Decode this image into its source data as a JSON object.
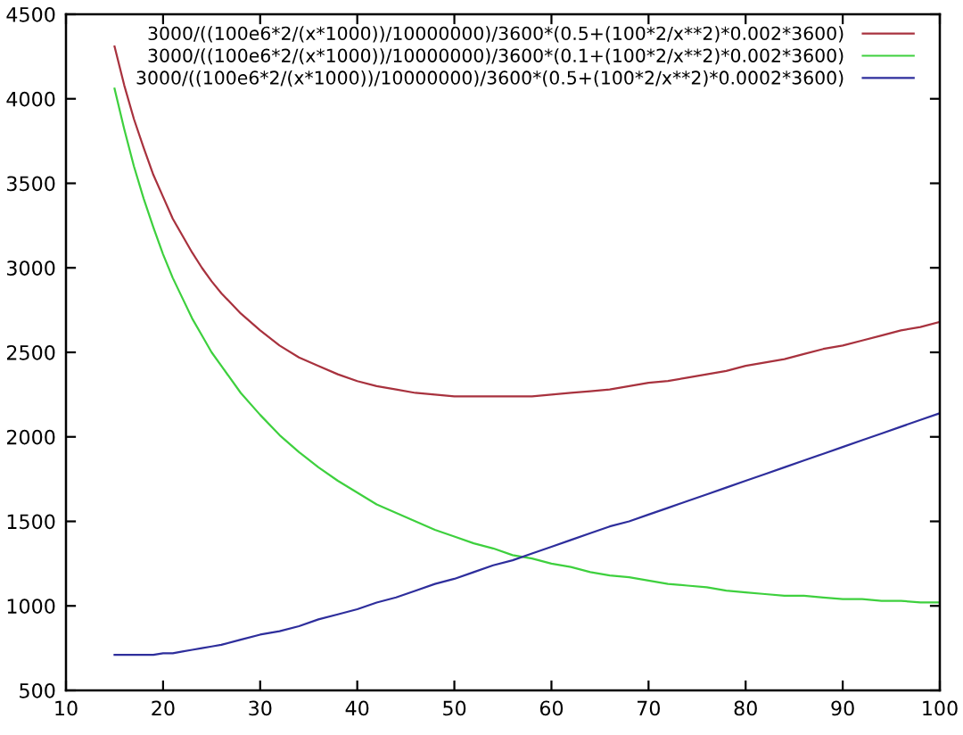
{
  "chart_data": {
    "type": "line",
    "x": [
      15,
      16,
      17,
      18,
      19,
      20,
      21,
      22,
      23,
      24,
      25,
      26,
      28,
      30,
      32,
      34,
      36,
      38,
      40,
      42,
      44,
      46,
      48,
      50,
      52,
      54,
      56,
      58,
      60,
      62,
      64,
      66,
      68,
      70,
      72,
      74,
      76,
      78,
      80,
      82,
      84,
      86,
      88,
      90,
      92,
      94,
      96,
      98,
      100
    ],
    "series": [
      {
        "name": "3000/((100e6*2/(x*1000))/10000000)/3600*(0.5+(100*2/x**2)*0.002*3600)",
        "color": "#a8323e",
        "values": [
          4310,
          4080,
          3880,
          3710,
          3550,
          3420,
          3290,
          3190,
          3090,
          3000,
          2920,
          2850,
          2730,
          2630,
          2540,
          2470,
          2420,
          2370,
          2330,
          2300,
          2280,
          2260,
          2250,
          2240,
          2240,
          2240,
          2240,
          2240,
          2250,
          2260,
          2270,
          2280,
          2300,
          2320,
          2330,
          2350,
          2370,
          2390,
          2420,
          2440,
          2460,
          2490,
          2520,
          2540,
          2570,
          2600,
          2630,
          2650,
          2680
        ]
      },
      {
        "name": "3000/((100e6*2/(x*1000))/10000000)/3600*(0.1+(100*2/x**2)*0.002*3600)",
        "color": "#3ed03e",
        "values": [
          4060,
          3820,
          3600,
          3410,
          3240,
          3080,
          2940,
          2820,
          2700,
          2600,
          2500,
          2420,
          2260,
          2130,
          2010,
          1910,
          1820,
          1740,
          1670,
          1600,
          1550,
          1500,
          1450,
          1410,
          1370,
          1340,
          1300,
          1280,
          1250,
          1230,
          1200,
          1180,
          1170,
          1150,
          1130,
          1120,
          1110,
          1090,
          1080,
          1070,
          1060,
          1060,
          1050,
          1040,
          1040,
          1030,
          1030,
          1020,
          1020
        ]
      },
      {
        "name": "3000/((100e6*2/(x*1000))/10000000)/3600*(0.5+(100*2/x**2)*0.0002*3600)",
        "color": "#2e2e9c",
        "values": [
          710,
          710,
          710,
          710,
          710,
          720,
          720,
          730,
          740,
          750,
          760,
          770,
          800,
          830,
          850,
          880,
          920,
          950,
          980,
          1020,
          1050,
          1090,
          1130,
          1160,
          1200,
          1240,
          1270,
          1310,
          1350,
          1390,
          1430,
          1470,
          1500,
          1540,
          1580,
          1620,
          1660,
          1700,
          1740,
          1780,
          1820,
          1860,
          1900,
          1940,
          1980,
          2020,
          2060,
          2100,
          2140
        ]
      }
    ],
    "xlim": [
      10,
      100
    ],
    "ylim": [
      500,
      4500
    ],
    "xticks": [
      10,
      20,
      30,
      40,
      50,
      60,
      70,
      80,
      90,
      100
    ],
    "yticks": [
      500,
      1000,
      1500,
      2000,
      2500,
      3000,
      3500,
      4000,
      4500
    ],
    "grid": false,
    "legend": "top right"
  }
}
